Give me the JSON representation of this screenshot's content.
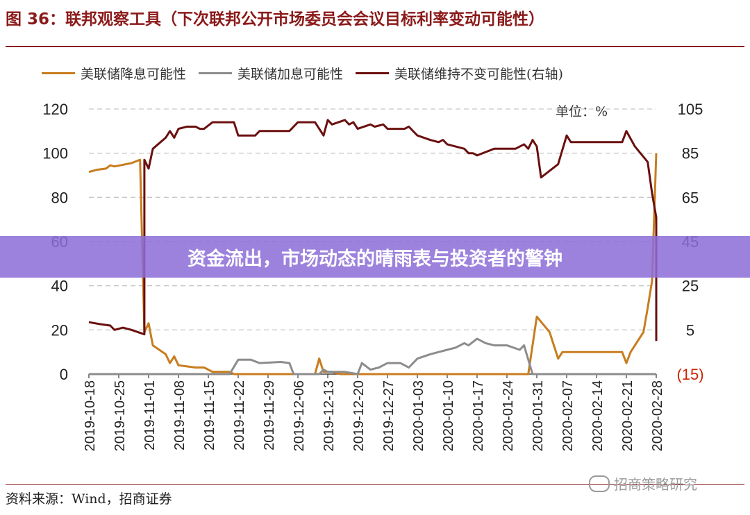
{
  "figure": {
    "title": "图 36：联邦观察工具（下次联邦公开市场委员会会议目标利率变动可能性）",
    "source": "资料来源：Wind，招商证券",
    "watermark": "招商策略研究",
    "banner": "资金流出，市场动态的晴雨表与投资者的警钟",
    "unit": "单位：%"
  },
  "colors": {
    "title": "#8b1a1a",
    "cut": "#c87d1e",
    "hike": "#8c8c8c",
    "hold": "#6b0f0f",
    "negative_label": "#cc2200",
    "banner": "#8c6ed7"
  },
  "chart_data": {
    "type": "line",
    "x_ticks": [
      "2019-10-18",
      "2019-10-25",
      "2019-11-01",
      "2019-11-08",
      "2019-11-15",
      "2019-11-22",
      "2019-11-29",
      "2019-12-06",
      "2019-12-13",
      "2019-12-20",
      "2019-12-27",
      "2020-01-03",
      "2020-01-10",
      "2020-01-17",
      "2020-01-24",
      "2020-01-31",
      "2020-02-07",
      "2020-02-14",
      "2020-02-21",
      "2020-02-28"
    ],
    "y_left": {
      "ticks": [
        "0",
        "20",
        "40",
        "60",
        "80",
        "100",
        "120"
      ],
      "lim": [
        0,
        120
      ]
    },
    "y_right": {
      "ticks": [
        "(15)",
        "5",
        "25",
        "45",
        "65",
        "85",
        "105"
      ],
      "lim": [
        -15,
        105
      ]
    },
    "grid": "horizontal dashed",
    "legend": "top",
    "series": [
      {
        "name": "美联储降息可能性",
        "axis": "left",
        "points": [
          [
            "2019-10-18",
            91.5
          ],
          [
            "2019-10-20",
            92.5
          ],
          [
            "2019-10-22",
            93
          ],
          [
            "2019-10-23",
            94.5
          ],
          [
            "2019-10-24",
            94
          ],
          [
            "2019-10-28",
            95.5
          ],
          [
            "2019-10-30",
            97
          ],
          [
            "2019-10-31",
            19
          ],
          [
            "2019-11-01",
            23
          ],
          [
            "2019-11-02",
            13
          ],
          [
            "2019-11-05",
            9
          ],
          [
            "2019-11-06",
            5
          ],
          [
            "2019-11-07",
            8
          ],
          [
            "2019-11-08",
            4
          ],
          [
            "2019-11-12",
            3
          ],
          [
            "2019-11-14",
            3
          ],
          [
            "2019-11-16",
            1
          ],
          [
            "2019-11-20",
            1
          ],
          [
            "2019-11-21",
            0
          ],
          [
            "2019-12-10",
            0
          ],
          [
            "2019-12-11",
            7
          ],
          [
            "2019-12-12",
            1
          ],
          [
            "2019-12-14",
            1
          ],
          [
            "2019-12-16",
            0
          ],
          [
            "2020-01-29",
            0
          ],
          [
            "2020-01-31",
            26
          ],
          [
            "2020-02-03",
            19
          ],
          [
            "2020-02-05",
            7
          ],
          [
            "2020-02-06",
            10
          ],
          [
            "2020-02-20",
            10
          ],
          [
            "2020-02-21",
            5
          ],
          [
            "2020-02-22",
            10
          ],
          [
            "2020-02-25",
            19
          ],
          [
            "2020-02-26",
            30
          ],
          [
            "2020-02-27",
            42
          ],
          [
            "2020-02-28",
            100
          ],
          [
            "2020-02-29",
            100
          ]
        ]
      },
      {
        "name": "美联储加息可能性",
        "axis": "left",
        "points": [
          [
            "2019-10-18",
            0
          ],
          [
            "2019-11-20",
            0
          ],
          [
            "2019-11-22",
            6.5
          ],
          [
            "2019-11-25",
            6.5
          ],
          [
            "2019-11-27",
            5
          ],
          [
            "2019-12-02",
            5.5
          ],
          [
            "2019-12-04",
            5
          ],
          [
            "2019-12-05",
            0
          ],
          [
            "2019-12-11",
            0
          ],
          [
            "2019-12-12",
            2
          ],
          [
            "2019-12-13",
            1
          ],
          [
            "2019-12-17",
            1
          ],
          [
            "2019-12-20",
            0
          ],
          [
            "2019-12-21",
            5
          ],
          [
            "2019-12-23",
            2
          ],
          [
            "2019-12-25",
            3
          ],
          [
            "2019-12-27",
            5
          ],
          [
            "2019-12-30",
            5
          ],
          [
            "2020-01-01",
            3
          ],
          [
            "2020-01-03",
            7
          ],
          [
            "2020-01-06",
            9
          ],
          [
            "2020-01-08",
            10
          ],
          [
            "2020-01-10",
            11
          ],
          [
            "2020-01-12",
            12
          ],
          [
            "2020-01-14",
            14
          ],
          [
            "2020-01-15",
            13
          ],
          [
            "2020-01-17",
            16
          ],
          [
            "2020-01-19",
            14
          ],
          [
            "2020-01-21",
            13
          ],
          [
            "2020-01-24",
            13
          ],
          [
            "2020-01-27",
            11
          ],
          [
            "2020-01-28",
            13
          ],
          [
            "2020-01-30",
            0
          ],
          [
            "2020-02-29",
            0
          ]
        ]
      },
      {
        "name": "美联储维持不变可能性(右轴)",
        "axis": "right",
        "points": [
          [
            "2019-10-18",
            8.5
          ],
          [
            "2019-10-21",
            7.5
          ],
          [
            "2019-10-23",
            7
          ],
          [
            "2019-10-24",
            5
          ],
          [
            "2019-10-26",
            6
          ],
          [
            "2019-10-28",
            5
          ],
          [
            "2019-10-31",
            3
          ],
          [
            "2019-10-31",
            82
          ],
          [
            "2019-11-01",
            78
          ],
          [
            "2019-11-02",
            87
          ],
          [
            "2019-11-05",
            92
          ],
          [
            "2019-11-06",
            95
          ],
          [
            "2019-11-07",
            92
          ],
          [
            "2019-11-08",
            96
          ],
          [
            "2019-11-10",
            97
          ],
          [
            "2019-11-12",
            97
          ],
          [
            "2019-11-13",
            96
          ],
          [
            "2019-11-14",
            96
          ],
          [
            "2019-11-16",
            99
          ],
          [
            "2019-11-21",
            99
          ],
          [
            "2019-11-22",
            93
          ],
          [
            "2019-11-26",
            93
          ],
          [
            "2019-11-27",
            95
          ],
          [
            "2019-12-02",
            95
          ],
          [
            "2019-12-04",
            95
          ],
          [
            "2019-12-06",
            99
          ],
          [
            "2019-12-10",
            99
          ],
          [
            "2019-12-12",
            93
          ],
          [
            "2019-12-13",
            100
          ],
          [
            "2019-12-14",
            98
          ],
          [
            "2019-12-17",
            100
          ],
          [
            "2019-12-18",
            98
          ],
          [
            "2019-12-19",
            99
          ],
          [
            "2019-12-20",
            96
          ],
          [
            "2019-12-23",
            98
          ],
          [
            "2019-12-24",
            97
          ],
          [
            "2019-12-26",
            98
          ],
          [
            "2019-12-27",
            96
          ],
          [
            "2019-12-31",
            96
          ],
          [
            "2020-01-01",
            97
          ],
          [
            "2020-01-03",
            93
          ],
          [
            "2020-01-06",
            91
          ],
          [
            "2020-01-08",
            90
          ],
          [
            "2020-01-09",
            91
          ],
          [
            "2020-01-10",
            89
          ],
          [
            "2020-01-14",
            87
          ],
          [
            "2020-01-15",
            85
          ],
          [
            "2020-01-16",
            85
          ],
          [
            "2020-01-17",
            84
          ],
          [
            "2020-01-21",
            87
          ],
          [
            "2020-01-26",
            87
          ],
          [
            "2020-01-28",
            89
          ],
          [
            "2020-01-29",
            87
          ],
          [
            "2020-01-30",
            91
          ],
          [
            "2020-01-31",
            88
          ],
          [
            "2020-02-01",
            74
          ],
          [
            "2020-02-05",
            80
          ],
          [
            "2020-02-07",
            93
          ],
          [
            "2020-02-08",
            90
          ],
          [
            "2020-02-20",
            90
          ],
          [
            "2020-02-21",
            95
          ],
          [
            "2020-02-23",
            88
          ],
          [
            "2020-02-26",
            81
          ],
          [
            "2020-02-27",
            67
          ],
          [
            "2020-02-28",
            56
          ],
          [
            "2020-02-29",
            0
          ],
          [
            "2020-03-01",
            0
          ]
        ]
      }
    ]
  }
}
